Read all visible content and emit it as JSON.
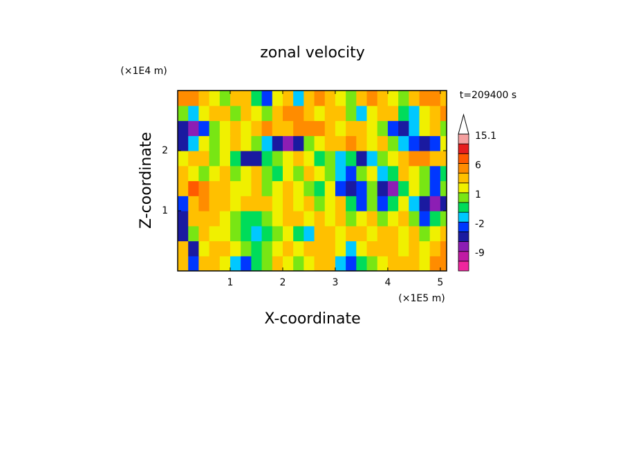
{
  "chart_data": {
    "type": "contour",
    "title": "zonal velocity",
    "x_label": "X-coordinate",
    "y_label": "Z-coordinate",
    "x_unit": "(×1E5 m)",
    "y_unit": "(×1E4 m)",
    "annotation": "t=209400 s",
    "xlim": [
      0,
      5.12
    ],
    "ylim": [
      0,
      3
    ],
    "xticks": [
      1,
      2,
      3,
      4,
      5
    ],
    "yticks": [
      1,
      2
    ],
    "x": [
      0.1,
      0.3,
      0.5,
      0.7,
      0.9,
      1.1,
      1.3,
      1.5,
      1.7,
      1.9,
      2.1,
      2.3,
      2.5,
      2.7,
      2.9,
      3.1,
      3.3,
      3.5,
      3.7,
      3.9,
      4.1,
      4.3,
      4.5,
      4.7,
      4.9,
      5.1
    ],
    "y": [
      0.125,
      0.375,
      0.625,
      0.875,
      1.125,
      1.375,
      1.625,
      1.875,
      2.125,
      2.375,
      2.625,
      2.875
    ],
    "z": [
      [
        3,
        -4,
        2,
        3,
        1,
        -2,
        -3,
        -1,
        0,
        2,
        1,
        0,
        1,
        2,
        3,
        -2,
        -3,
        -1,
        0,
        1,
        2,
        3,
        2,
        1,
        4,
        5
      ],
      [
        2,
        -6,
        1,
        2,
        2,
        1,
        0,
        -1,
        0,
        1,
        2,
        1,
        2,
        3,
        2,
        1,
        -2,
        1,
        2,
        3,
        2,
        1,
        2,
        1,
        2,
        4
      ],
      [
        -5,
        0,
        2,
        1,
        1,
        0,
        -1,
        -2,
        -1,
        0,
        1,
        -1,
        -2,
        2,
        3,
        1,
        2,
        3,
        1,
        2,
        3,
        1,
        2,
        0,
        1,
        3
      ],
      [
        -6,
        2,
        3,
        2,
        1,
        0,
        -1,
        -1,
        0,
        1,
        2,
        3,
        1,
        2,
        1,
        2,
        0,
        1,
        2,
        0,
        1,
        2,
        0,
        -3,
        -1,
        0
      ],
      [
        -4,
        3,
        4,
        3,
        2,
        1,
        2,
        3,
        2,
        1,
        2,
        1,
        2,
        0,
        1,
        2,
        -1,
        -4,
        0,
        -3,
        -1,
        1,
        -2,
        -6,
        -7,
        -5
      ],
      [
        3,
        6,
        4,
        3,
        2,
        1,
        1,
        2,
        0,
        1,
        2,
        1,
        0,
        -1,
        1,
        -3,
        -6,
        -4,
        0,
        -5,
        -7,
        -1,
        1,
        0,
        -3,
        0
      ],
      [
        2,
        1,
        0,
        1,
        2,
        0,
        1,
        2,
        0,
        -1,
        1,
        0,
        2,
        1,
        0,
        -2,
        -3,
        0,
        1,
        -2,
        -1,
        2,
        1,
        0,
        -3,
        -1
      ],
      [
        1,
        3,
        2,
        0,
        1,
        -1,
        -6,
        -5,
        -1,
        0,
        1,
        2,
        1,
        -1,
        0,
        -2,
        -1,
        -5,
        -2,
        0,
        1,
        2,
        4,
        5,
        3,
        2
      ],
      [
        -5,
        -2,
        1,
        0,
        1,
        2,
        1,
        0,
        -2,
        -6,
        -8,
        -5,
        0,
        1,
        2,
        3,
        4,
        3,
        1,
        2,
        0,
        -2,
        -4,
        -6,
        -3,
        1
      ],
      [
        -6,
        -8,
        -4,
        0,
        1,
        2,
        1,
        3,
        4,
        2,
        3,
        4,
        5,
        4,
        2,
        1,
        3,
        2,
        1,
        0,
        -3,
        -6,
        -2,
        1,
        2,
        0
      ],
      [
        0,
        -2,
        1,
        3,
        2,
        0,
        2,
        1,
        0,
        3,
        4,
        5,
        3,
        1,
        2,
        3,
        0,
        -2,
        1,
        2,
        3,
        -1,
        -2,
        1,
        3,
        4
      ],
      [
        4,
        5,
        3,
        1,
        0,
        2,
        3,
        -1,
        -3,
        1,
        3,
        -2,
        3,
        4,
        2,
        1,
        0,
        3,
        4,
        2,
        1,
        0,
        3,
        4,
        5,
        3
      ]
    ],
    "colorbar": {
      "levels": [
        -15,
        -12,
        -9,
        -6,
        -4,
        -2,
        -1,
        0,
        1,
        2,
        4,
        6,
        9,
        12,
        15.1
      ],
      "colors": [
        "#f0269e",
        "#c01aa4",
        "#8c1eb4",
        "#1a1aa0",
        "#0037ff",
        "#00c8ff",
        "#00dc5a",
        "#78e614",
        "#f0f000",
        "#ffc000",
        "#ff8c00",
        "#ff5a00",
        "#e61e1e",
        "#f5a0a0"
      ],
      "over_color": "#ffffff",
      "ticks": [
        -9,
        -2,
        1,
        6,
        15.1
      ]
    }
  }
}
